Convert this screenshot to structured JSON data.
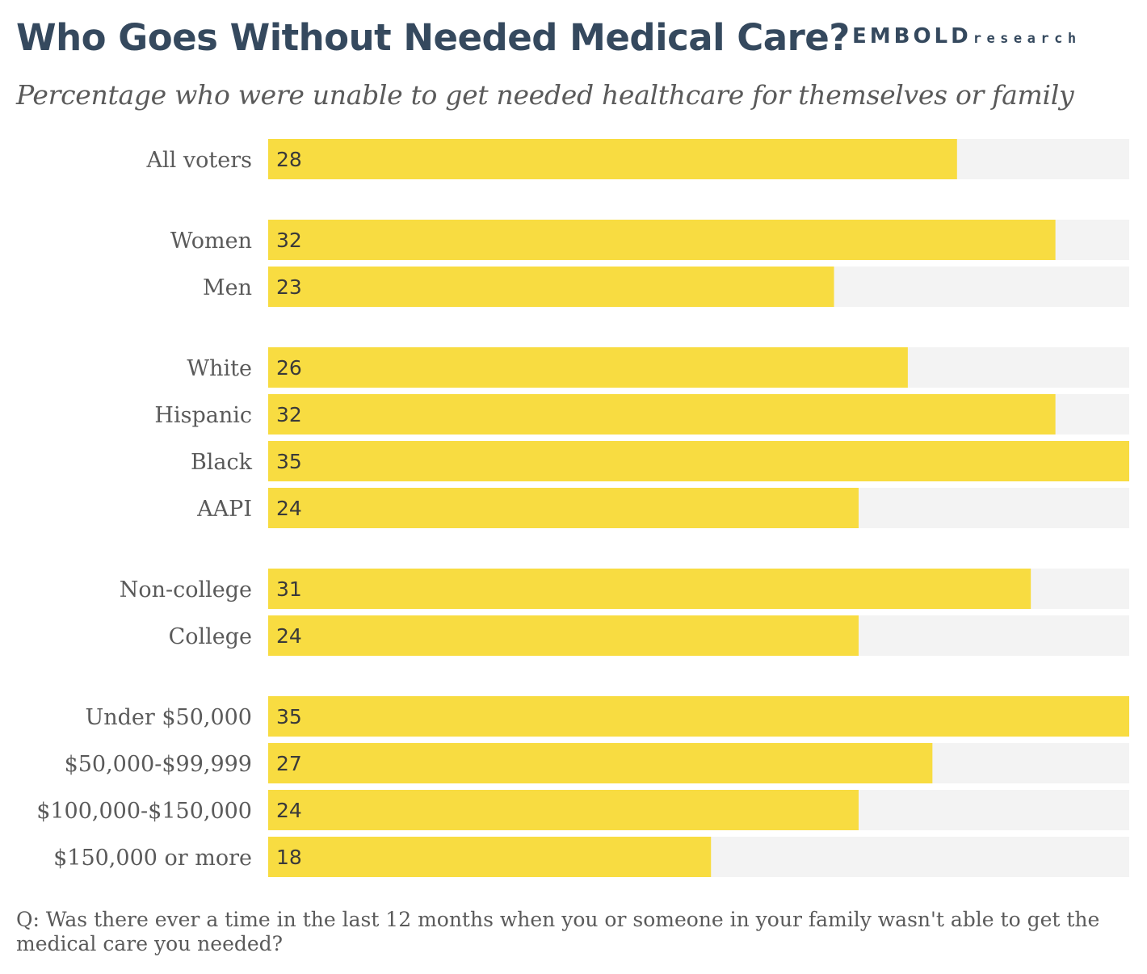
{
  "title": "Who Goes Without Needed Medical Care?",
  "logo": {
    "main": "EMBOLD",
    "sub": "research"
  },
  "subtitle": "Percentage who were unable to get needed healthcare for themselves or family",
  "footnote": "Q: Was there ever a time in the last 12 months when you or someone in your family wasn't able to get the medical care you needed?",
  "colors": {
    "bar": "#f8dc41",
    "track": "#f3f3f3",
    "label": "#5a5a5a",
    "value": "#3a3a3a",
    "title": "#35495e"
  },
  "chart_data": {
    "type": "bar",
    "orientation": "horizontal",
    "title": "Who Goes Without Needed Medical Care?",
    "xlabel": "",
    "ylabel": "",
    "xlim": [
      0,
      35
    ],
    "groups": [
      [
        "All voters"
      ],
      [
        "Women",
        "Men"
      ],
      [
        "White",
        "Hispanic",
        "Black",
        "AAPI"
      ],
      [
        "Non-college",
        "College"
      ],
      [
        "Under $50,000",
        "$50,000-$99,999",
        "$100,000-$150,000",
        "$150,000 or more"
      ]
    ],
    "categories": [
      "All voters",
      "Women",
      "Men",
      "White",
      "Hispanic",
      "Black",
      "AAPI",
      "Non-college",
      "College",
      "Under $50,000",
      "$50,000-$99,999",
      "$100,000-$150,000",
      "$150,000 or more"
    ],
    "values": [
      28,
      32,
      23,
      26,
      32,
      35,
      24,
      31,
      24,
      35,
      27,
      24,
      18
    ]
  }
}
